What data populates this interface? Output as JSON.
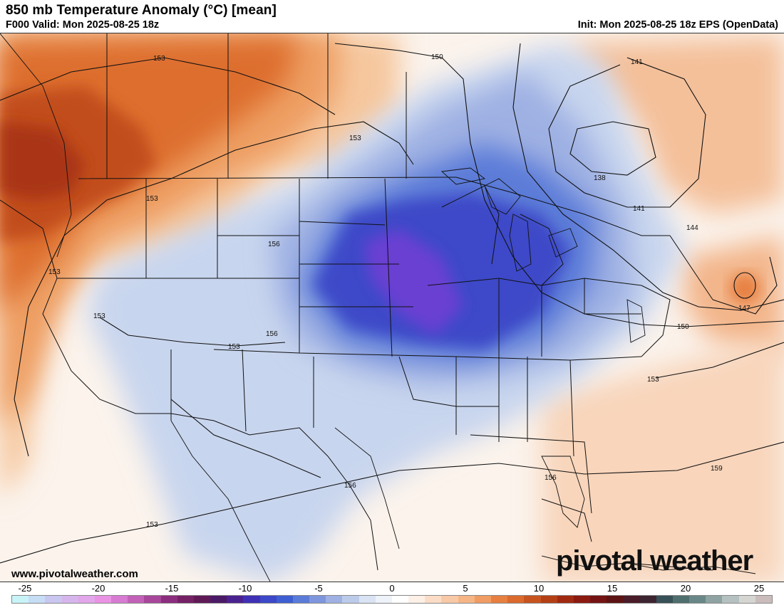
{
  "header": {
    "title": "850 mb Temperature Anomaly (°C) [mean]",
    "valid": "F000 Valid: Mon 2025-08-25 18z",
    "init": "Init: Mon 2025-08-25 18z EPS (OpenData)"
  },
  "footer": {
    "website": "www.pivotalweather.com",
    "brand": "pivotal weather"
  },
  "colorbar": {
    "tick_labels": [
      "-25",
      "-20",
      "-15",
      "-10",
      "-5",
      "0",
      "5",
      "10",
      "15",
      "20",
      "25"
    ],
    "colors": [
      "#c8f4f8",
      "#c6ddf5",
      "#c9c6f0",
      "#d6b5ec",
      "#e2a6ea",
      "#ea93e4",
      "#d77bd2",
      "#c261b7",
      "#a7469b",
      "#8c2e7e",
      "#742166",
      "#5f1a56",
      "#4b1a66",
      "#4a2290",
      "#3f31b6",
      "#3c48c8",
      "#3e5fd2",
      "#5b7bd8",
      "#7e96dd",
      "#9fb1e3",
      "#bccbea",
      "#d9e3f3",
      "#eef2f9",
      "#ffffff",
      "#fdf0e6",
      "#fbddc7",
      "#f8c9a6",
      "#f5b585",
      "#f09c63",
      "#e77f40",
      "#da6a2e",
      "#c7531f",
      "#b53f15",
      "#a02a10",
      "#8b1a10",
      "#741313",
      "#5d1313",
      "#4a1b28",
      "#3d2431",
      "#385057",
      "#4e6f6e",
      "#6a8787",
      "#8ea3a2",
      "#b4c1c0",
      "#d5d6d2",
      "#cbbcbc"
    ]
  },
  "contour_labels": [
    "153",
    "153",
    "153",
    "153",
    "153",
    "153",
    "153",
    "150",
    "150",
    "141",
    "141",
    "138",
    "144",
    "147",
    "156",
    "156",
    "156",
    "156",
    "153",
    "159"
  ],
  "legend_colors": {
    "warm": "#c54a18",
    "cold": "#3a4fd0",
    "extreme_cold": "#7a3fd6"
  }
}
